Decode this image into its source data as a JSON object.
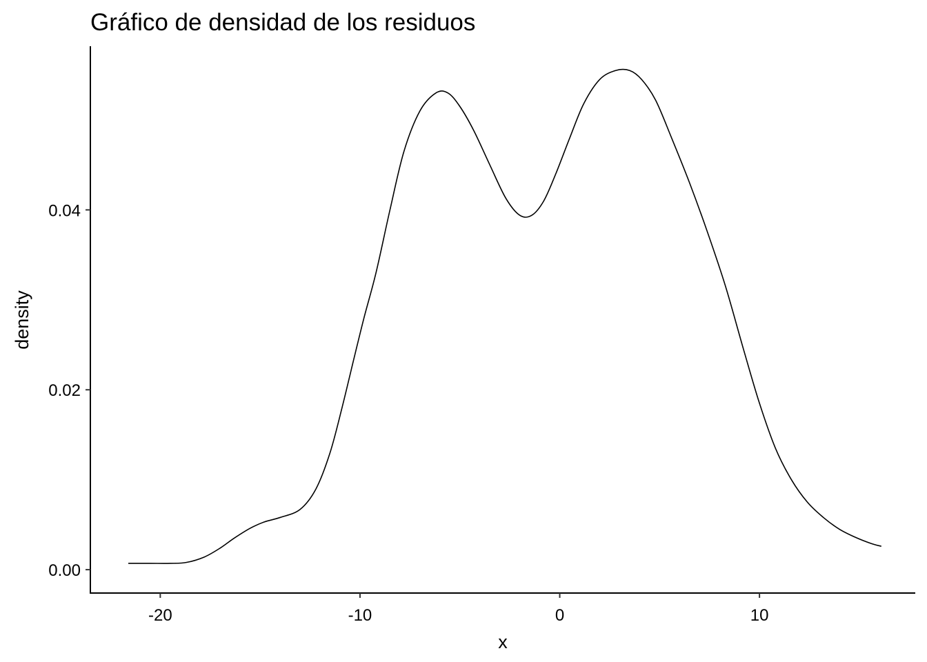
{
  "chart_data": {
    "type": "line",
    "title": "Gráfico de densidad de los residuos",
    "xlabel": "x",
    "ylabel": "density",
    "xlim": [
      -23.5,
      17.8
    ],
    "ylim": [
      -0.0026,
      0.0582
    ],
    "x_ticks": [
      {
        "value": -20,
        "label": "-20"
      },
      {
        "value": -10,
        "label": "-10"
      },
      {
        "value": 0,
        "label": "0"
      },
      {
        "value": 10,
        "label": "10"
      }
    ],
    "y_ticks": [
      {
        "value": 0.0,
        "label": "0.00"
      },
      {
        "value": 0.02,
        "label": "0.02"
      },
      {
        "value": 0.04,
        "label": "0.04"
      }
    ],
    "grid": false,
    "series": [
      {
        "x": [
          -21.6,
          -20.5,
          -19.5,
          -18.7,
          -17.8,
          -17.0,
          -16.3,
          -15.5,
          -14.8,
          -14.0,
          -13.0,
          -12.2,
          -11.5,
          -10.9,
          -10.3,
          -9.8,
          -9.2,
          -8.5,
          -7.8,
          -7.0,
          -6.2,
          -5.6,
          -5.0,
          -4.3,
          -3.5,
          -2.7,
          -2.0,
          -1.4,
          -0.8,
          -0.2,
          0.5,
          1.2,
          2.0,
          2.8,
          3.5,
          4.1,
          4.8,
          5.6,
          6.5,
          7.4,
          8.3,
          9.2,
          10.0,
          10.8,
          11.6,
          12.4,
          13.2,
          14.0,
          14.8,
          15.6,
          16.1
        ],
        "y": [
          0.0007,
          0.0007,
          0.0007,
          0.0008,
          0.0014,
          0.0024,
          0.0035,
          0.0046,
          0.0053,
          0.0058,
          0.0067,
          0.009,
          0.013,
          0.018,
          0.0235,
          0.028,
          0.033,
          0.04,
          0.0465,
          0.051,
          0.053,
          0.053,
          0.0515,
          0.0488,
          0.045,
          0.0413,
          0.0394,
          0.0394,
          0.041,
          0.044,
          0.048,
          0.0518,
          0.0545,
          0.0555,
          0.0555,
          0.0545,
          0.0522,
          0.048,
          0.043,
          0.0375,
          0.0315,
          0.0245,
          0.0185,
          0.0135,
          0.01,
          0.0075,
          0.0058,
          0.0045,
          0.0036,
          0.0029,
          0.0026
        ]
      }
    ]
  }
}
